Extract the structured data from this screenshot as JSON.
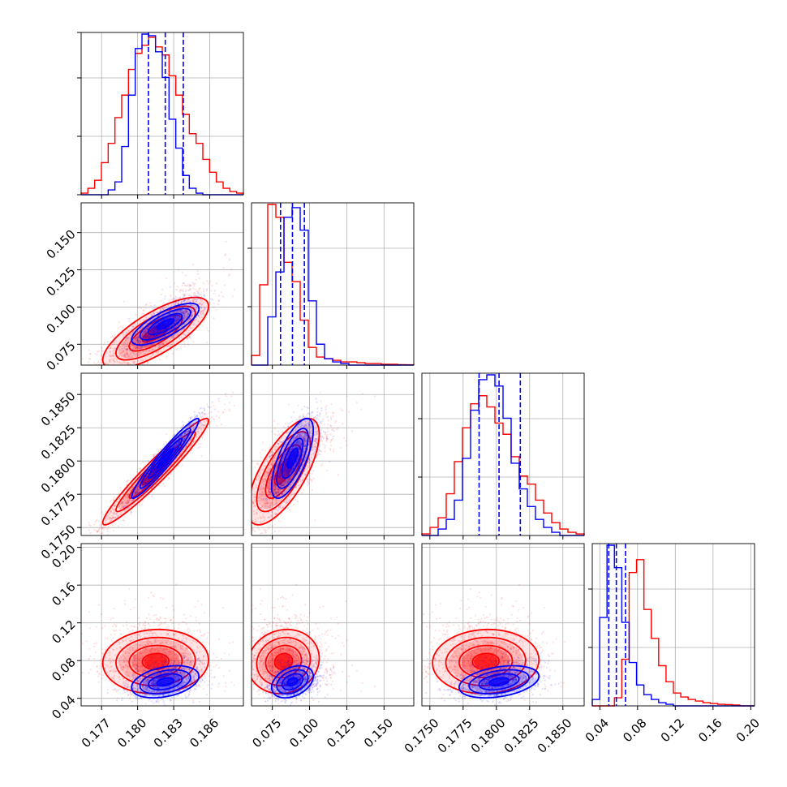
{
  "chart_data": {
    "type": "scatter",
    "subtype": "corner-plot",
    "grid": true,
    "colors": {
      "series_red": "#ff0000",
      "series_blue": "#0000ff",
      "grid": "#b0b0b0"
    },
    "parameters": [
      {
        "range": [
          0.1753,
          0.1888
        ],
        "ticks": [
          0.177,
          0.18,
          0.183,
          0.186
        ],
        "tick_labels": [
          "0.177",
          "0.180",
          "0.183",
          "0.186"
        ]
      },
      {
        "range": [
          0.061,
          0.17
        ],
        "ticks": [
          0.075,
          0.1,
          0.125,
          0.15
        ],
        "tick_labels": [
          "0.075",
          "0.100",
          "0.125",
          "0.150"
        ]
      },
      {
        "range": [
          0.1744,
          0.1866
        ],
        "ticks": [
          0.175,
          0.1775,
          0.18,
          0.1825,
          0.185
        ],
        "tick_labels": [
          "0.1750",
          "0.1775",
          "0.1800",
          "0.1825",
          "0.1850"
        ]
      },
      {
        "range": [
          0.032,
          0.204
        ],
        "ticks": [
          0.04,
          0.08,
          0.12,
          0.16,
          0.2
        ],
        "tick_labels": [
          "0.04",
          "0.08",
          "0.12",
          "0.16",
          "0.20"
        ]
      }
    ],
    "series": [
      {
        "color": "#ff0000",
        "medians": [
          0.1815,
          0.0825,
          0.1792,
          0.079
        ],
        "sigmas": [
          0.0022,
          0.012,
          0.002,
          0.017
        ],
        "skews": [
          0,
          1,
          0,
          1
        ],
        "correlations": {
          "0-1": 0.75,
          "0-2": 0.96,
          "0-3": 0.05,
          "1-2": 0.7,
          "1-3": 0.1,
          "2-3": 0.05
        },
        "histograms": [
          [
            0.01,
            0.04,
            0.09,
            0.2,
            0.32,
            0.48,
            0.62,
            0.78,
            0.88,
            0.93,
            0.98,
            0.92,
            0.87,
            0.74,
            0.62,
            0.5,
            0.38,
            0.32,
            0.22,
            0.14,
            0.08,
            0.04,
            0.02,
            0.01
          ],
          [
            0.06,
            0.5,
            1.0,
            0.92,
            0.64,
            0.52,
            0.28,
            0.11,
            0.05,
            0.04,
            0.03,
            0.02,
            0.02,
            0.015,
            0.01,
            0.01,
            0.005,
            0.005,
            0.003,
            0.002
          ],
          [
            0.01,
            0.05,
            0.11,
            0.26,
            0.46,
            0.67,
            0.82,
            0.87,
            0.8,
            0.7,
            0.63,
            0.49,
            0.37,
            0.32,
            0.22,
            0.14,
            0.08,
            0.04,
            0.02,
            0.01
          ],
          [
            0.0,
            0.0,
            0.0,
            0.05,
            0.29,
            0.83,
            0.91,
            0.6,
            0.42,
            0.25,
            0.15,
            0.08,
            0.055,
            0.04,
            0.03,
            0.02,
            0.015,
            0.01,
            0.008,
            0.005,
            0.0,
            0.0
          ]
        ]
      },
      {
        "color": "#0000ff",
        "medians": [
          0.1823,
          0.0885,
          0.1802,
          0.0575
        ],
        "sigmas": [
          0.0014,
          0.007,
          0.0015,
          0.0085
        ],
        "skews": [
          0,
          1,
          0,
          1
        ],
        "correlations": {
          "0-1": 0.75,
          "0-2": 0.96,
          "0-3": 0.35,
          "1-2": 0.7,
          "1-3": 0.35,
          "2-3": 0.35
        },
        "quantile_lines": [
          [
            0.1809,
            0.1823,
            0.1838
          ],
          [
            0.0805,
            0.0885,
            0.0965
          ],
          [
            0.1787,
            0.1802,
            0.1818
          ],
          [
            0.0495,
            0.0575,
            0.0672
          ]
        ],
        "histograms": [
          [
            0.0,
            0.0,
            0.0,
            0.0,
            0.03,
            0.08,
            0.3,
            0.62,
            0.91,
            1.0,
            0.99,
            0.89,
            0.73,
            0.47,
            0.29,
            0.12,
            0.04,
            0.01,
            0.0,
            0.0,
            0.0,
            0.0,
            0.0,
            0.0
          ],
          [
            0.0,
            0.0,
            0.3,
            0.58,
            0.92,
            0.98,
            0.84,
            0.4,
            0.13,
            0.04,
            0.02,
            0.01,
            0.0,
            0.0,
            0.0,
            0.0,
            0.0,
            0.0,
            0.0,
            0.0
          ],
          [
            0.0,
            0.0,
            0.04,
            0.1,
            0.22,
            0.48,
            0.78,
            0.97,
            1.0,
            0.93,
            0.73,
            0.45,
            0.29,
            0.18,
            0.1,
            0.05,
            0.02,
            0.0,
            0.0,
            0.0
          ],
          [
            0.04,
            0.55,
            1.0,
            0.86,
            0.52,
            0.27,
            0.13,
            0.07,
            0.04,
            0.02,
            0.01,
            0.0,
            0.0,
            0.0,
            0.0,
            0.0,
            0.0,
            0.0,
            0.0,
            0.0,
            0.0,
            0.0
          ]
        ]
      }
    ]
  }
}
